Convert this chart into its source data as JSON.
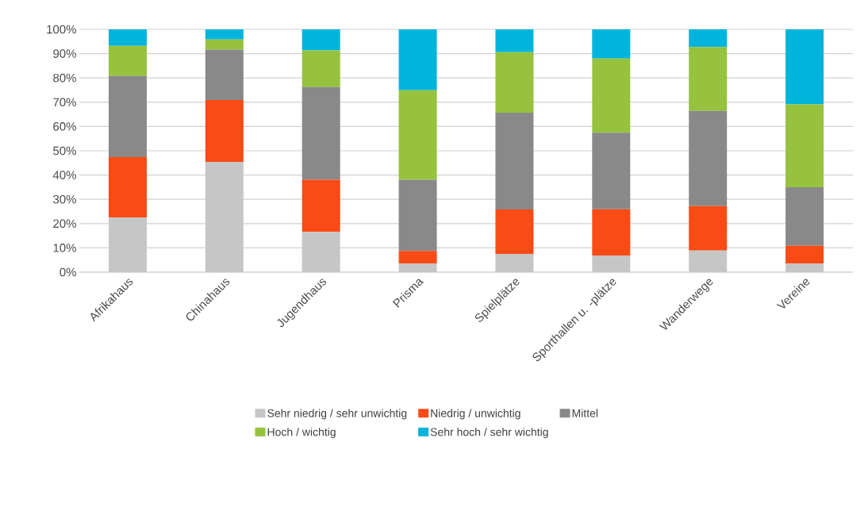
{
  "chart_data": {
    "type": "bar",
    "stacked": true,
    "categories": [
      "Afrikahaus",
      "Chinahaus",
      "Jugendhaus",
      "Prisma",
      "Spielplätze",
      "Sporthallen u. -plätze",
      "Wanderwege",
      "Vereine"
    ],
    "series": [
      {
        "name": "Sehr niedrig / sehr unwichtig",
        "color": "#c6c6c6",
        "values": [
          22.5,
          45.4,
          16.6,
          3.5,
          7.5,
          6.9,
          8.9,
          3.5
        ]
      },
      {
        "name": "Niedrig / unwichtig",
        "color": "#f84b16",
        "values": [
          24.9,
          25.5,
          21.5,
          5.2,
          18.3,
          19.0,
          18.3,
          7.4
        ]
      },
      {
        "name": "Mittel",
        "color": "#898989",
        "values": [
          33.4,
          20.8,
          38.1,
          29.4,
          39.9,
          31.5,
          39.2,
          24.1
        ]
      },
      {
        "name": "Hoch / wichtig",
        "color": "#96c23e",
        "values": [
          12.4,
          4.1,
          15.1,
          36.8,
          24.9,
          30.6,
          26.3,
          34.1
        ]
      },
      {
        "name": "Sehr hoch / sehr wichtig",
        "color": "#00b4dc",
        "values": [
          6.8,
          4.2,
          8.7,
          25.1,
          9.4,
          12.0,
          7.3,
          30.9
        ]
      }
    ],
    "ylim": [
      0,
      100
    ],
    "yticks": [
      {
        "value": 0,
        "label": "0%"
      },
      {
        "value": 10,
        "label": "10%"
      },
      {
        "value": 20,
        "label": "20%"
      },
      {
        "value": 30,
        "label": "30%"
      },
      {
        "value": 40,
        "label": "40%"
      },
      {
        "value": 50,
        "label": "50%"
      },
      {
        "value": 60,
        "label": "60%"
      },
      {
        "value": 70,
        "label": "70%"
      },
      {
        "value": 80,
        "label": "80%"
      },
      {
        "value": 90,
        "label": "90%"
      },
      {
        "value": 100,
        "label": "100%"
      }
    ],
    "grid": "y",
    "legend": "bottom"
  }
}
